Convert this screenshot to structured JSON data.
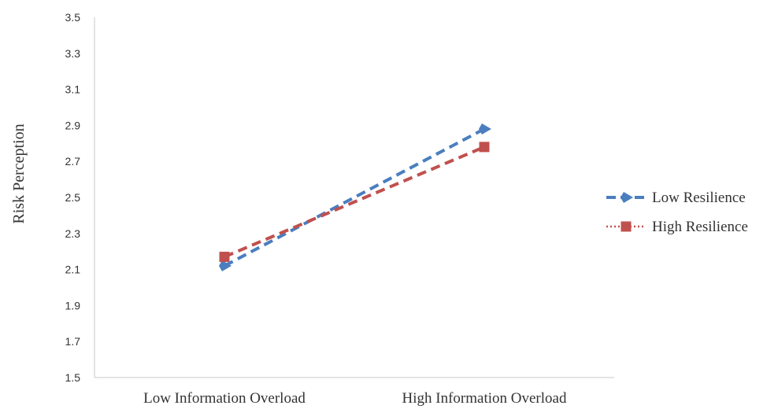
{
  "chart_data": {
    "type": "line",
    "title": "",
    "xlabel": "",
    "ylabel": "Risk Perception",
    "categories": [
      "Low Information Overload",
      "High Information Overload"
    ],
    "ylim": [
      1.5,
      3.5
    ],
    "yticks": [
      "1.5",
      "1.7",
      "1.9",
      "2.1",
      "2.3",
      "2.5",
      "2.7",
      "2.9",
      "3.1",
      "3.3",
      "3.5"
    ],
    "grid": false,
    "legend_position": "right",
    "series": [
      {
        "name": "Low Resilience",
        "values": [
          2.12,
          2.88
        ],
        "color": "#4a7ebf",
        "line_style": "dashed",
        "marker": "arrow-diamond"
      },
      {
        "name": "High Resilience",
        "values": [
          2.17,
          2.78
        ],
        "color": "#c0504d",
        "line_style": "dashed",
        "legend_line_style": "dotted",
        "marker": "square"
      }
    ]
  }
}
